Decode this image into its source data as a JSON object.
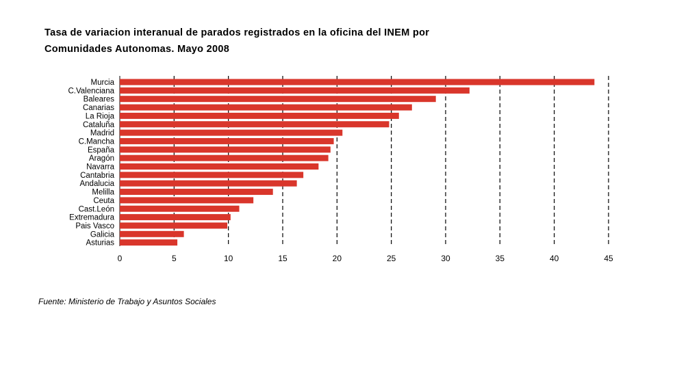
{
  "title_line1": "Tasa de variacion interanual de parados registrados en la oficina del INEM por",
  "title_line2": "Comunidades Autonomas. Mayo 2008",
  "source": "Fuente: Ministerio de Trabajo y Asuntos Sociales",
  "colors": {
    "bar": "#d9362b",
    "grid": "#000000"
  },
  "chart_data": {
    "type": "bar",
    "orientation": "horizontal",
    "title": "Tasa de variacion interanual de parados registrados en la oficina del INEM por Comunidades Autonomas. Mayo 2008",
    "xlabel": "",
    "ylabel": "",
    "xlim": [
      0,
      45
    ],
    "xticks": [
      0,
      5,
      10,
      15,
      20,
      25,
      30,
      35,
      40,
      45
    ],
    "grid": "vertical dashed",
    "legend": "none",
    "categories": [
      "Murcia",
      "C.Valenciana",
      "Baleares",
      "Canarias",
      "La Rioja",
      "Cataluña",
      "Madrid",
      "C.Mancha",
      "España",
      "Aragón",
      "Navarra",
      "Cantabria",
      "Andalucia",
      "Melilla",
      "Ceuta",
      "Cast.León",
      "Extremadura",
      "Pais Vasco",
      "Galicia",
      "Asturias"
    ],
    "values": [
      43.7,
      32.2,
      29.1,
      26.9,
      25.7,
      24.8,
      20.5,
      19.7,
      19.4,
      19.2,
      18.3,
      16.9,
      16.3,
      14.1,
      12.3,
      11.0,
      10.2,
      9.9,
      5.9,
      5.3
    ]
  }
}
